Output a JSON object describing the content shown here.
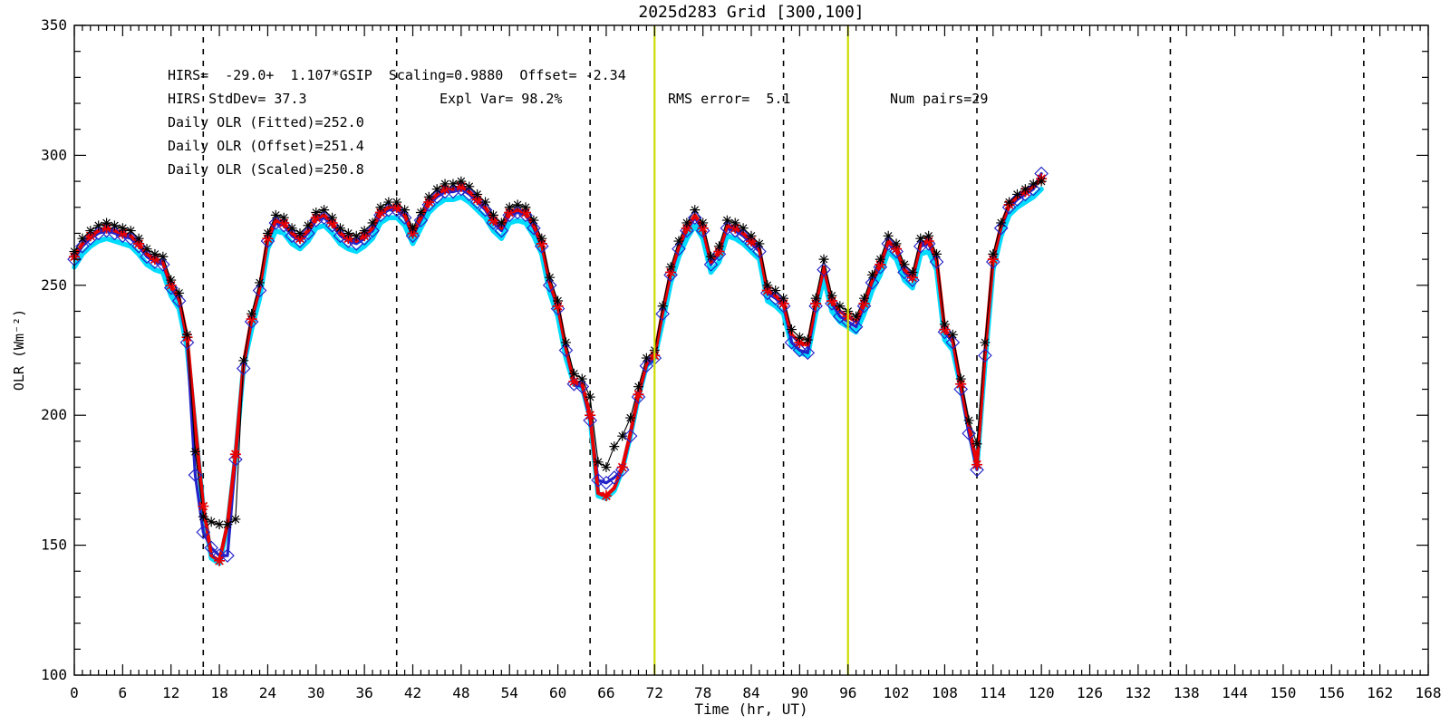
{
  "chart_data": {
    "type": "line",
    "title": "2025d283 Grid [300,100]",
    "xlabel": "Time (hr, UT)",
    "ylabel": "OLR (Wm⁻²)",
    "xlim": [
      0,
      168
    ],
    "ylim": [
      100,
      350
    ],
    "grid": false,
    "legend_position": "none",
    "x_ticks": [
      0,
      6,
      12,
      18,
      24,
      30,
      36,
      42,
      48,
      54,
      60,
      66,
      72,
      78,
      84,
      90,
      96,
      102,
      108,
      114,
      120,
      126,
      132,
      138,
      144,
      150,
      156,
      162,
      168
    ],
    "x_minor_step": 1,
    "y_ticks": [
      100,
      150,
      200,
      250,
      300,
      350
    ],
    "y_minor_step": 10,
    "day_boundaries_dashed": [
      16,
      40,
      64,
      88,
      112,
      136,
      160
    ],
    "highlight_lines_yellow": [
      72,
      96
    ],
    "colors": {
      "black_series": "#000000",
      "red_series": "#e80000",
      "blue_series": "#2222c8",
      "cyan_series": "#00dcff",
      "yellow_line": "#cbdc00",
      "dashed_line": "#000000"
    },
    "x_start": 0,
    "x_step": 1,
    "series": [
      {
        "name": "hirs-black-asterisks",
        "color": "#000000",
        "marker": "asterisk",
        "marker_every": 1,
        "line_width": 1.1,
        "values": [
          263,
          268,
          271,
          273,
          274,
          273,
          272,
          271,
          268,
          264,
          262,
          261,
          252,
          247,
          231,
          186,
          161,
          159,
          158,
          158,
          160,
          221,
          239,
          251,
          270,
          277,
          276,
          272,
          270,
          273,
          278,
          279,
          276,
          272,
          270,
          269,
          271,
          274,
          280,
          282,
          282,
          279,
          272,
          278,
          284,
          287,
          289,
          289,
          290,
          288,
          285,
          282,
          277,
          274,
          280,
          281,
          280,
          275,
          268,
          253,
          244,
          228,
          216,
          214,
          207,
          182,
          180,
          188,
          192,
          199,
          211,
          222,
          225,
          242,
          257,
          267,
          274,
          279,
          274,
          261,
          265,
          275,
          274,
          272,
          269,
          266,
          250,
          248,
          245,
          233,
          230,
          229,
          245,
          260,
          246,
          242,
          240,
          238,
          245,
          254,
          260,
          269,
          266,
          258,
          255,
          268,
          269,
          262,
          235,
          231,
          214,
          198,
          189,
          228,
          262,
          274,
          282,
          285,
          287,
          289,
          290
        ]
      },
      {
        "name": "gsip-fitted-red",
        "color": "#e80000",
        "marker": "asterisk",
        "marker_every": 2,
        "line_width": 4,
        "values": [
          261,
          266,
          269,
          271,
          272,
          271,
          270,
          269,
          266,
          262,
          260,
          259,
          250,
          245,
          230,
          196,
          165,
          146,
          144,
          158,
          185,
          220,
          237,
          249,
          268,
          275,
          274,
          270,
          268,
          271,
          276,
          277,
          274,
          270,
          268,
          267,
          269,
          272,
          278,
          280,
          280,
          277,
          270,
          276,
          282,
          285,
          287,
          287,
          288,
          286,
          283,
          280,
          275,
          272,
          278,
          279,
          278,
          273,
          266,
          251,
          242,
          226,
          213,
          212,
          200,
          170,
          169,
          172,
          180,
          193,
          208,
          220,
          223,
          240,
          255,
          265,
          272,
          277,
          272,
          259,
          263,
          273,
          272,
          270,
          267,
          264,
          248,
          246,
          243,
          231,
          228,
          227,
          243,
          257,
          244,
          240,
          238,
          236,
          243,
          252,
          258,
          267,
          264,
          256,
          253,
          266,
          267,
          260,
          233,
          229,
          212,
          196,
          181,
          224,
          260,
          273,
          281,
          284,
          286,
          288,
          291
        ]
      },
      {
        "name": "gsip-offset-blue-diamonds",
        "color": "#2222c8",
        "marker": "diamond",
        "marker_every": 1,
        "line_width": 3.2,
        "values": [
          260,
          265,
          268,
          270,
          271,
          270,
          269,
          268,
          265,
          261,
          259,
          258,
          249,
          244,
          228,
          177,
          155,
          149,
          146,
          146,
          183,
          218,
          236,
          248,
          267,
          274,
          273,
          269,
          267,
          270,
          275,
          276,
          273,
          269,
          267,
          266,
          268,
          271,
          277,
          279,
          279,
          276,
          269,
          275,
          281,
          284,
          286,
          286,
          287,
          285,
          282,
          279,
          274,
          271,
          277,
          278,
          277,
          272,
          265,
          250,
          241,
          225,
          212,
          211,
          198,
          175,
          174,
          176,
          179,
          192,
          207,
          219,
          222,
          239,
          254,
          264,
          271,
          276,
          271,
          258,
          262,
          272,
          271,
          269,
          266,
          263,
          247,
          245,
          242,
          228,
          225,
          224,
          242,
          256,
          243,
          238,
          236,
          234,
          242,
          251,
          257,
          266,
          263,
          255,
          252,
          265,
          266,
          259,
          232,
          228,
          210,
          193,
          179,
          223,
          259,
          272,
          280,
          283,
          285,
          287,
          293
        ]
      },
      {
        "name": "gsip-scaled-cyan",
        "color": "#00dcff",
        "marker": "none",
        "marker_every": 1,
        "line_width": 5.5,
        "values": [
          257,
          262,
          265,
          267,
          268,
          267,
          266,
          265,
          262,
          258,
          256,
          255,
          246,
          241,
          226,
          195,
          164,
          145,
          143,
          157,
          184,
          219,
          233,
          245,
          264,
          271,
          270,
          266,
          264,
          267,
          272,
          273,
          270,
          266,
          264,
          263,
          265,
          268,
          274,
          276,
          276,
          273,
          266,
          272,
          278,
          281,
          283,
          283,
          284,
          282,
          279,
          276,
          271,
          268,
          274,
          275,
          274,
          269,
          262,
          247,
          238,
          222,
          212,
          211,
          199,
          169,
          168,
          171,
          179,
          192,
          207,
          219,
          222,
          236,
          251,
          261,
          268,
          273,
          268,
          255,
          259,
          269,
          268,
          266,
          263,
          260,
          244,
          242,
          239,
          227,
          224,
          223,
          239,
          253,
          240,
          236,
          234,
          232,
          239,
          248,
          254,
          263,
          260,
          252,
          249,
          262,
          263,
          256,
          229,
          225,
          211,
          195,
          180,
          220,
          256,
          269,
          277,
          280,
          282,
          284,
          287
        ]
      }
    ]
  },
  "annotations": {
    "fit_line": "HIRS=  -29.0+  1.107*GSIP  Scaling=0.9880  Offset= -2.34",
    "stddev": "HIRS StdDev= 37.3",
    "expl_var": "Expl Var= 98.2%",
    "rms": "RMS error=  5.1",
    "num_pairs": "Num pairs=29",
    "daily_fitted": "Daily OLR (Fitted)=252.0",
    "daily_offset": "Daily OLR (Offset)=251.4",
    "daily_scaled": "Daily OLR (Scaled)=250.8"
  }
}
